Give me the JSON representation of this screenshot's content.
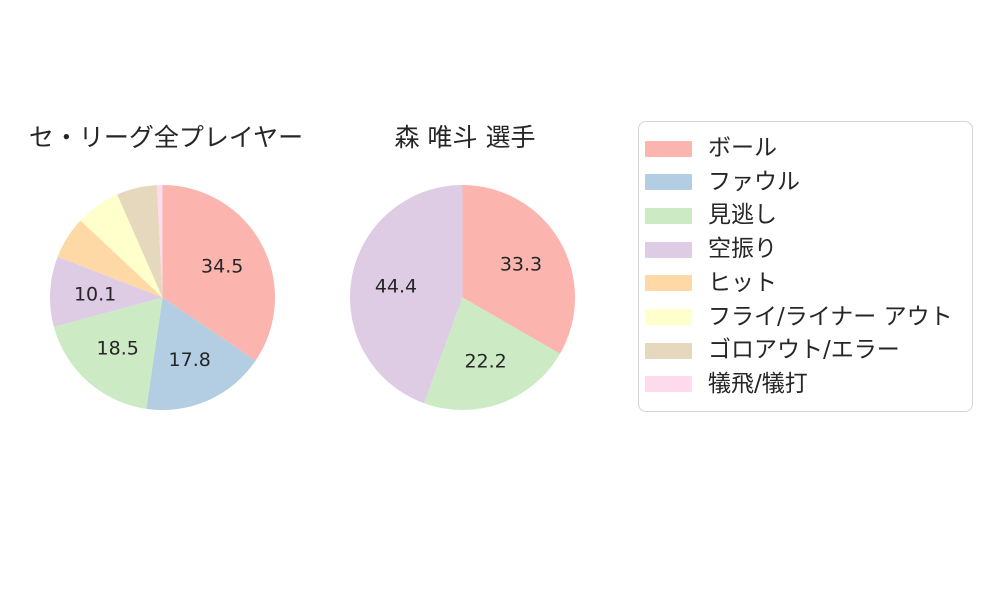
{
  "figure": {
    "background": "#ffffff",
    "text_color": "#262626",
    "legend_border_color": "#d4d4d4"
  },
  "chart_data": [
    {
      "type": "pie",
      "title": "セ・リーグ全プレイヤー",
      "start_angle": "12-oclock",
      "direction": "clockwise",
      "label_distance": 0.6,
      "slices": [
        {
          "category": "ボール",
          "value": 34.5,
          "label": "34.5",
          "color": "#fbb4ae"
        },
        {
          "category": "ファウル",
          "value": 17.8,
          "label": "17.8",
          "color": "#b3cde3"
        },
        {
          "category": "見逃し",
          "value": 18.5,
          "label": "18.5",
          "color": "#ccebc5"
        },
        {
          "category": "空振り",
          "value": 10.1,
          "label": "10.1",
          "color": "#decbe4"
        },
        {
          "category": "ヒット",
          "value": 6.1,
          "label": "",
          "color": "#fed9a6"
        },
        {
          "category": "フライ/ライナー アウト",
          "value": 6.4,
          "label": "",
          "color": "#ffffcc"
        },
        {
          "category": "ゴロアウト/エラー",
          "value": 5.8,
          "label": "",
          "color": "#e5d8bd"
        },
        {
          "category": "犠飛/犠打",
          "value": 0.8,
          "label": "",
          "color": "#fddaec"
        }
      ]
    },
    {
      "type": "pie",
      "title": "森 唯斗 選手",
      "start_angle": "12-oclock",
      "direction": "clockwise",
      "label_distance": 0.6,
      "slices": [
        {
          "category": "ボール",
          "value": 33.3,
          "label": "33.3",
          "color": "#fbb4ae"
        },
        {
          "category": "見逃し",
          "value": 22.2,
          "label": "22.2",
          "color": "#ccebc5"
        },
        {
          "category": "空振り",
          "value": 44.4,
          "label": "44.4",
          "color": "#decbe4"
        }
      ]
    }
  ],
  "legend": {
    "position": "right",
    "items": [
      {
        "label": "ボール",
        "color": "#fbb4ae"
      },
      {
        "label": "ファウル",
        "color": "#b3cde3"
      },
      {
        "label": "見逃し",
        "color": "#ccebc5"
      },
      {
        "label": "空振り",
        "color": "#decbe4"
      },
      {
        "label": "ヒット",
        "color": "#fed9a6"
      },
      {
        "label": "フライ/ライナー アウト",
        "color": "#ffffcc"
      },
      {
        "label": "ゴロアウト/エラー",
        "color": "#e5d8bd"
      },
      {
        "label": "犠飛/犠打",
        "color": "#fddaec"
      }
    ]
  }
}
